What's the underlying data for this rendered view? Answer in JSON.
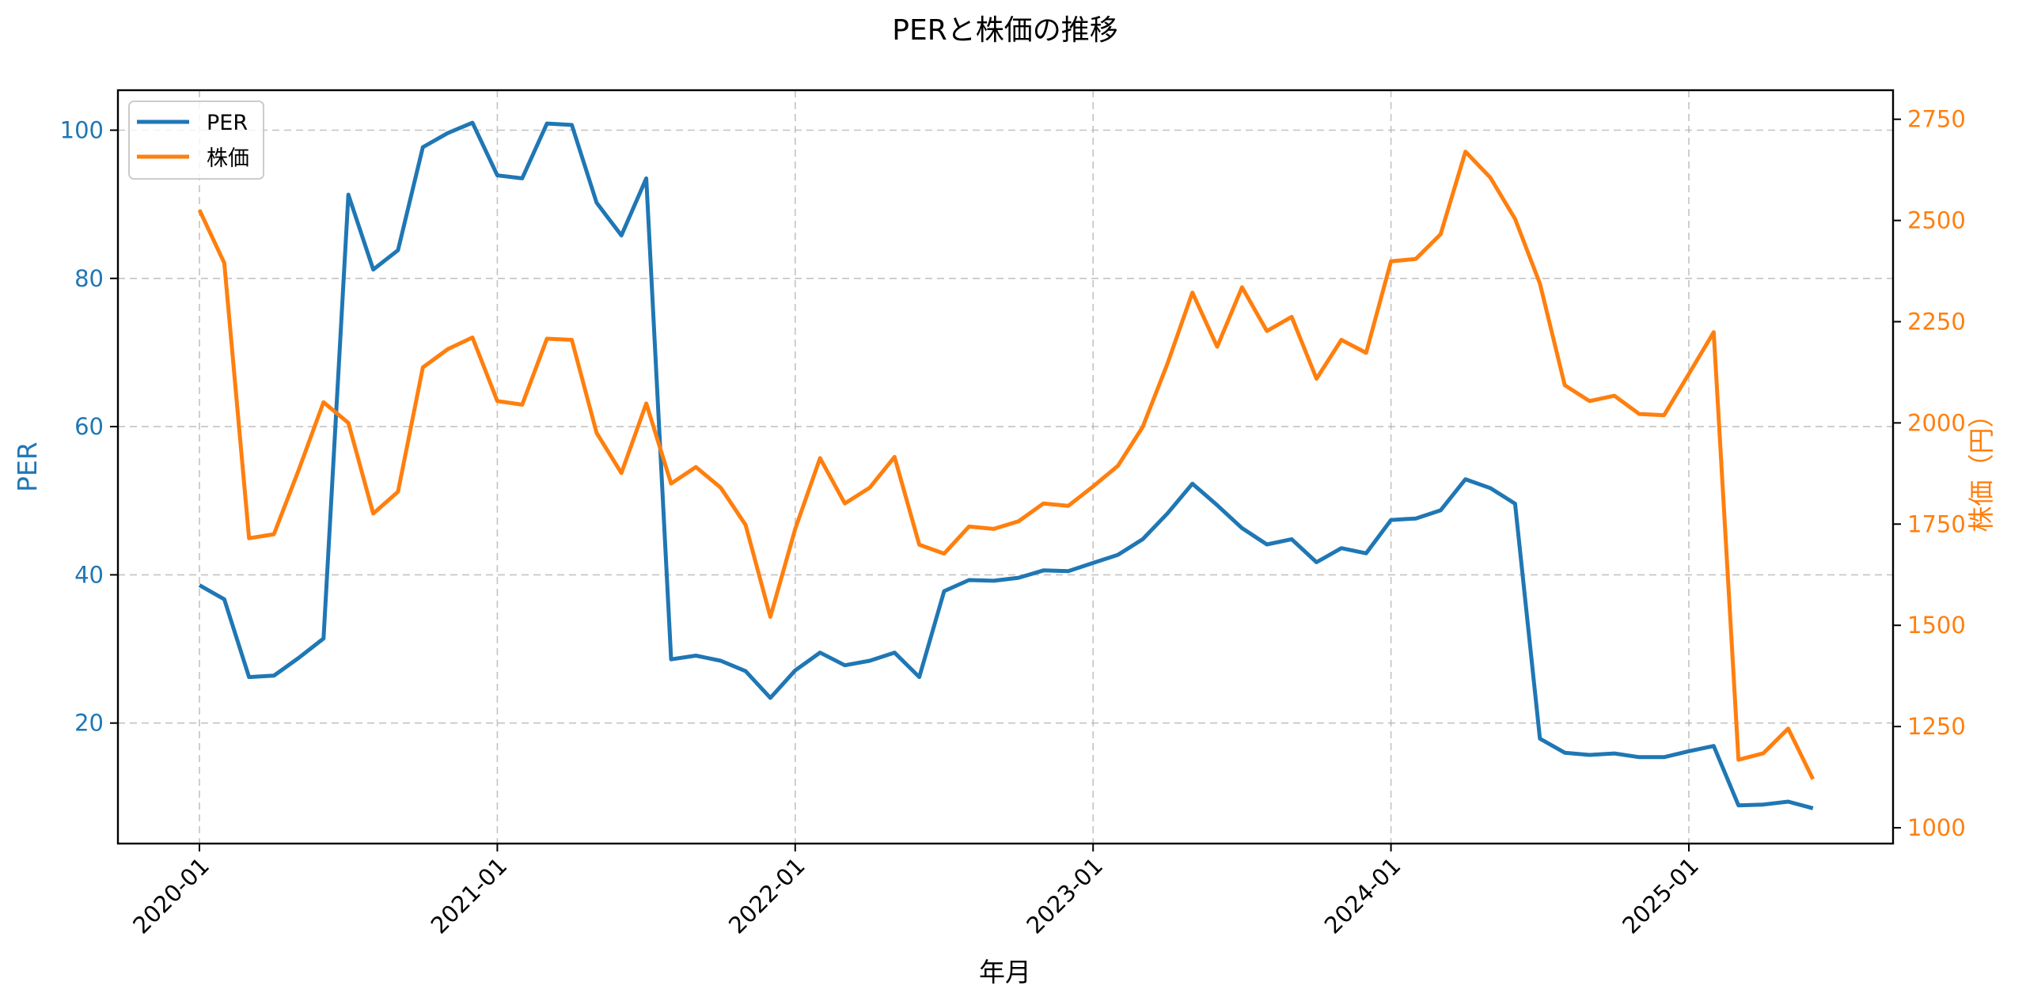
{
  "chart_data": {
    "type": "line",
    "title": "PERと株価の推移",
    "xlabel": "年月",
    "ylabel": "PER",
    "y2label": "株価（円）",
    "x_ticks": [
      "2020-01",
      "2021-01",
      "2022-01",
      "2023-01",
      "2024-01",
      "2025-01"
    ],
    "y_ticks": [
      20,
      40,
      60,
      80,
      100
    ],
    "y2_ticks": [
      1000,
      1250,
      1500,
      1750,
      2000,
      2250,
      2500,
      2750
    ],
    "ylim": [
      3.7,
      105.5
    ],
    "y2lim": [
      960,
      2860
    ],
    "grid": true,
    "legend_position": "upper left",
    "x": [
      "2020-01",
      "2020-02",
      "2020-03",
      "2020-04",
      "2020-05",
      "2020-06",
      "2020-07",
      "2020-08",
      "2020-09",
      "2020-10",
      "2020-11",
      "2020-12",
      "2021-01",
      "2021-02",
      "2021-03",
      "2021-04",
      "2021-05",
      "2021-06",
      "2021-07",
      "2021-08",
      "2021-09",
      "2021-10",
      "2021-11",
      "2021-12",
      "2022-01",
      "2022-02",
      "2022-03",
      "2022-04",
      "2022-05",
      "2022-06",
      "2022-07",
      "2022-08",
      "2022-09",
      "2022-10",
      "2022-11",
      "2022-12",
      "2023-01",
      "2023-02",
      "2023-03",
      "2023-04",
      "2023-05",
      "2023-06",
      "2023-07",
      "2023-08",
      "2023-09",
      "2023-10",
      "2023-11",
      "2023-12",
      "2024-01",
      "2024-02",
      "2024-03",
      "2024-04",
      "2024-05",
      "2024-06",
      "2024-07",
      "2024-08",
      "2024-09",
      "2024-10",
      "2024-11",
      "2024-12",
      "2025-01",
      "2025-02",
      "2025-03",
      "2025-04",
      "2025-05",
      "2025-06"
    ],
    "series": [
      {
        "name": "PER",
        "axis": "left",
        "color": "#1f77b4",
        "values": [
          38.6,
          36.7,
          26.2,
          26.4,
          28.8,
          31.4,
          91.3,
          81.2,
          83.8,
          97.7,
          99.6,
          101.0,
          93.9,
          93.5,
          100.9,
          100.7,
          90.2,
          85.8,
          93.5,
          28.6,
          29.1,
          28.4,
          27.0,
          23.4,
          27.1,
          29.5,
          27.8,
          28.4,
          29.5,
          26.2,
          37.8,
          39.3,
          39.2,
          39.6,
          40.6,
          40.5,
          41.6,
          42.7,
          44.8,
          48.3,
          52.3,
          49.4,
          46.3,
          44.1,
          44.8,
          41.7,
          43.6,
          42.9,
          47.4,
          47.6,
          48.7,
          52.9,
          51.7,
          49.6,
          17.9,
          16.0,
          15.7,
          15.9,
          15.4,
          15.4,
          16.2,
          16.9,
          8.9,
          9.0,
          9.4,
          8.5
        ]
      },
      {
        "name": "株価",
        "axis": "right",
        "color": "#ff7f0e",
        "values": [
          2526,
          2395,
          1715,
          1725,
          1884,
          2051,
          2000,
          1776,
          1830,
          2137,
          2182,
          2211,
          2054,
          2045,
          2208,
          2205,
          1975,
          1876,
          2048,
          1850,
          1891,
          1840,
          1748,
          1521,
          1738,
          1913,
          1801,
          1840,
          1916,
          1699,
          1677,
          1744,
          1738,
          1757,
          1801,
          1795,
          1843,
          1894,
          1990,
          2147,
          2322,
          2188,
          2335,
          2227,
          2262,
          2109,
          2205,
          2173,
          2399,
          2405,
          2466,
          2670,
          2606,
          2504,
          2344,
          2093,
          2054,
          2067,
          2022,
          2019,
          2121,
          2224,
          1168,
          1184,
          1245,
          1120
        ]
      }
    ]
  },
  "legend": {
    "items": [
      {
        "label": "PER",
        "color": "#1f77b4"
      },
      {
        "label": "株価",
        "color": "#ff7f0e"
      }
    ]
  }
}
